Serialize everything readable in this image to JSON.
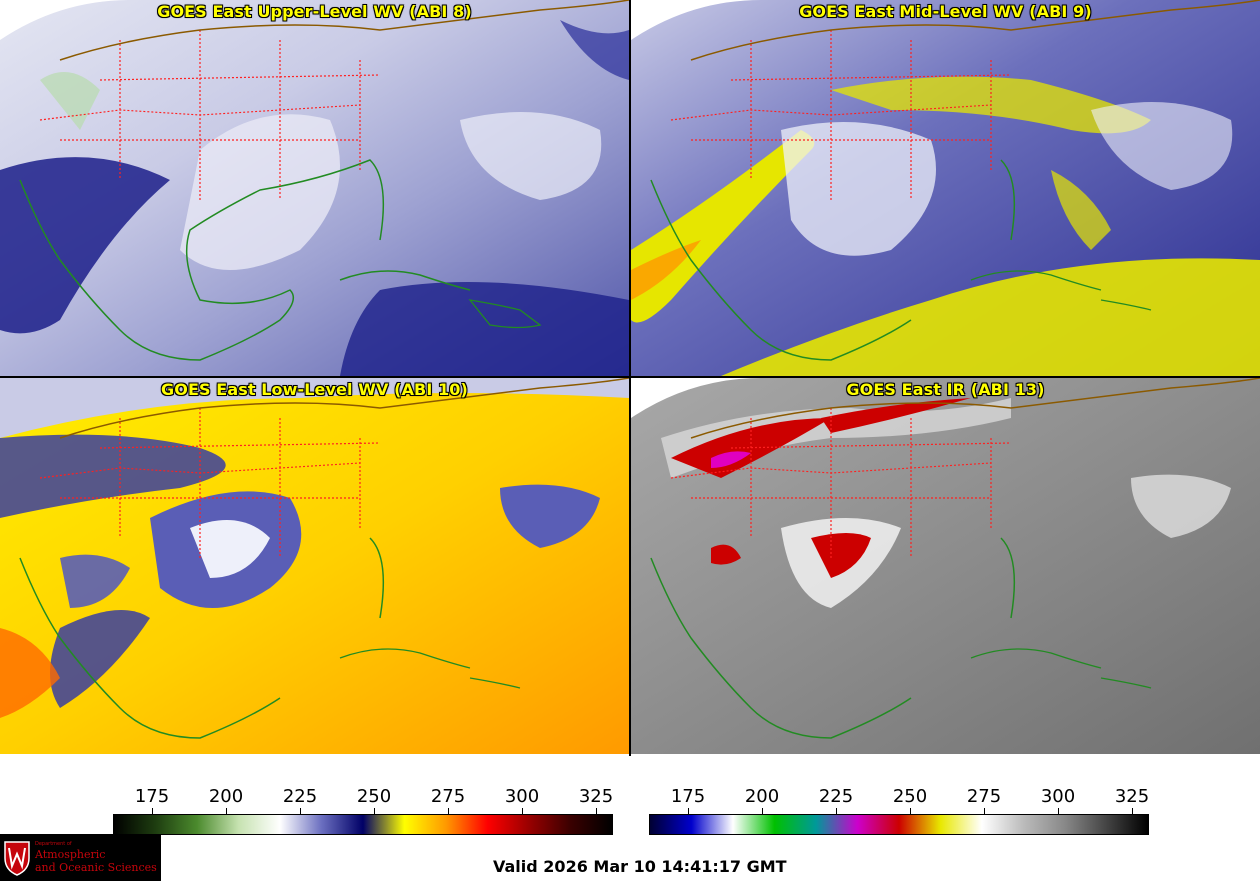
{
  "panels": [
    {
      "id": "upper",
      "title": "GOES East Upper-Level WV (ABI 8)"
    },
    {
      "id": "mid",
      "title": "GOES East Mid-Level WV (ABI 9)"
    },
    {
      "id": "low",
      "title": "GOES East Low-Level WV (ABI 10)"
    },
    {
      "id": "ir",
      "title": "GOES East IR (ABI 13)"
    }
  ],
  "colorbar_left": {
    "ticks": [
      "175",
      "200",
      "225",
      "250",
      "275",
      "300",
      "325"
    ],
    "stops": [
      "#000000",
      "#1e3d10",
      "#4b8a2d",
      "#c6e2b0",
      "#ffffff",
      "#6b6fc0",
      "#000066",
      "#ffff00",
      "#ff9900",
      "#ff0000",
      "#990000",
      "#3a0000",
      "#000000"
    ]
  },
  "colorbar_right": {
    "ticks": [
      "175",
      "200",
      "225",
      "250",
      "275",
      "300",
      "325"
    ],
    "stops": [
      "#000033",
      "#0000cc",
      "#ffffff",
      "#00c000",
      "#009999",
      "#cc00cc",
      "#cc0000",
      "#e8e800",
      "#ffffff",
      "#bbbbbb",
      "#888888",
      "#444444",
      "#000000"
    ]
  },
  "logo": {
    "dept": "Department of",
    "line1": "Atmospheric",
    "line2": "and Oceanic Sciences"
  },
  "valid_time": "Valid 2026 Mar 10 14:41:17 GMT",
  "colors": {
    "title": "#ffff00",
    "state_borders": "#ff2020",
    "coastline": "#228b22",
    "coast_brown": "#8b5a00"
  }
}
